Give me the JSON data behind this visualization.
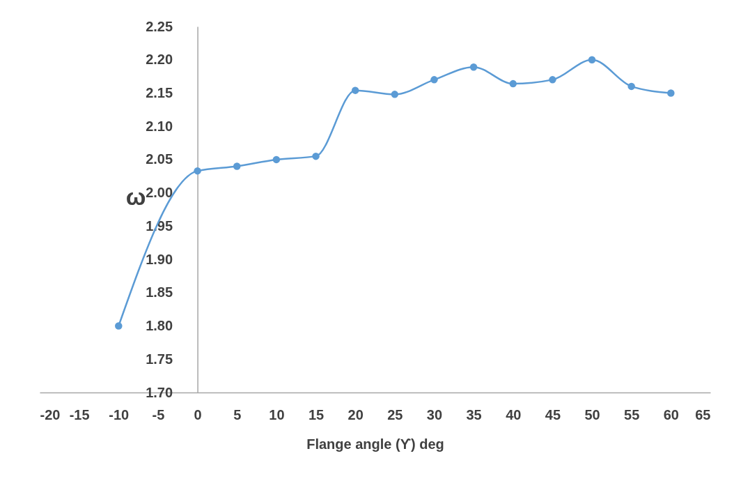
{
  "chart_data": {
    "type": "line",
    "xlabel": "Flange  angle (ϒ) deg",
    "ylabel": "ω",
    "x": [
      -10,
      0,
      5,
      10,
      15,
      20,
      25,
      30,
      35,
      40,
      45,
      50,
      55,
      60
    ],
    "series": [
      {
        "color": "#5b9bd5",
        "values": [
          1.8,
          2.033,
          2.04,
          2.05,
          2.055,
          2.154,
          2.148,
          2.17,
          2.189,
          2.164,
          2.17,
          2.2,
          2.16,
          2.15
        ]
      }
    ],
    "xlim": [
      -20,
      65
    ],
    "xticks": [
      -20,
      -15,
      -10,
      -5,
      0,
      5,
      10,
      15,
      20,
      25,
      30,
      35,
      40,
      45,
      50,
      55,
      60,
      65
    ],
    "ylim": [
      1.7,
      2.25
    ],
    "yticks": [
      {
        "value": 1.7,
        "label": "1.70"
      },
      1.75,
      {
        "value": 1.8,
        "label": "1.80"
      },
      1.85,
      {
        "value": 1.9,
        "label": "1.90"
      },
      1.95,
      {
        "value": 2.0,
        "label": "2.00"
      },
      2.05,
      {
        "value": 2.1,
        "label": "2.10"
      },
      2.15,
      {
        "value": 2.2,
        "label": "2.20"
      },
      2.25
    ],
    "grid": false,
    "marker": "circle",
    "line_style": "solid"
  }
}
